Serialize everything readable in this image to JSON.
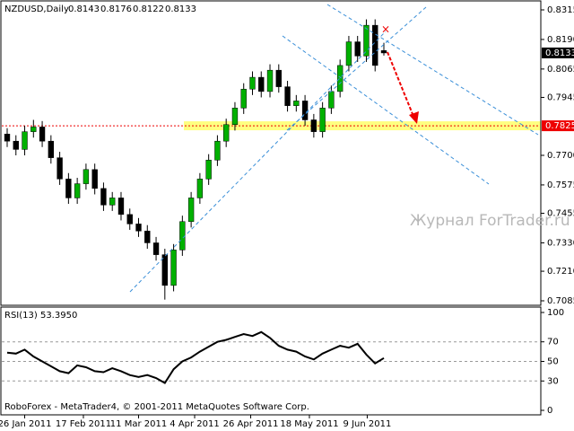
{
  "chart_data": {
    "type": "candlestick",
    "title": "NZDUSD,Daily",
    "open": [
      0.779,
      0.776,
      0.7725,
      0.78,
      0.782,
      0.776,
      0.769,
      0.76,
      0.752,
      0.758,
      0.764,
      0.756,
      0.749,
      0.752,
      0.745,
      0.741,
      0.738,
      0.733,
      0.728,
      0.715,
      0.73,
      0.742,
      0.752,
      0.76,
      0.768,
      0.776,
      0.783,
      0.79,
      0.798,
      0.803,
      0.797,
      0.806,
      0.799,
      0.791,
      0.793,
      0.785,
      0.78,
      0.79,
      0.797,
      0.808,
      0.818,
      0.812,
      0.825,
      0.8143
    ],
    "high": [
      0.7815,
      0.7785,
      0.7825,
      0.785,
      0.7845,
      0.7785,
      0.7715,
      0.7625,
      0.7605,
      0.7665,
      0.7665,
      0.7585,
      0.7545,
      0.7545,
      0.7475,
      0.7435,
      0.7405,
      0.7355,
      0.7305,
      0.7325,
      0.7445,
      0.7545,
      0.7625,
      0.7705,
      0.7785,
      0.7855,
      0.7925,
      0.8005,
      0.8055,
      0.8055,
      0.8085,
      0.8085,
      0.8015,
      0.7955,
      0.7955,
      0.7875,
      0.7925,
      0.7995,
      0.8105,
      0.8205,
      0.8205,
      0.8275,
      0.8275,
      0.8176
    ],
    "low": [
      0.7735,
      0.77,
      0.77,
      0.7775,
      0.7735,
      0.7665,
      0.7575,
      0.7495,
      0.7495,
      0.7555,
      0.7535,
      0.7465,
      0.7465,
      0.7425,
      0.7385,
      0.7355,
      0.7305,
      0.7255,
      0.709,
      0.7125,
      0.7275,
      0.7395,
      0.7495,
      0.7575,
      0.7655,
      0.7735,
      0.7805,
      0.7875,
      0.7955,
      0.7945,
      0.7945,
      0.7965,
      0.7885,
      0.7885,
      0.7825,
      0.7775,
      0.7775,
      0.7875,
      0.7945,
      0.8055,
      0.8095,
      0.8095,
      0.8055,
      0.8122
    ],
    "close": [
      0.776,
      0.7725,
      0.78,
      0.782,
      0.776,
      0.769,
      0.76,
      0.752,
      0.758,
      0.764,
      0.756,
      0.749,
      0.752,
      0.745,
      0.741,
      0.738,
      0.733,
      0.728,
      0.715,
      0.73,
      0.742,
      0.752,
      0.76,
      0.768,
      0.776,
      0.783,
      0.79,
      0.798,
      0.803,
      0.797,
      0.806,
      0.799,
      0.791,
      0.793,
      0.785,
      0.78,
      0.79,
      0.797,
      0.808,
      0.818,
      0.812,
      0.825,
      0.808,
      0.8133
    ],
    "up_color": "#00b000",
    "down_color": "#000000",
    "ylim": [
      0.7066,
      0.8353
    ],
    "yticks": [
      0.8315,
      {
        "value": 0.819,
        "label": "0.8190"
      },
      0.8065,
      0.7945,
      {
        "value": 0.77,
        "label": "0.7700"
      },
      0.7575,
      0.7455,
      {
        "value": 0.733,
        "label": "0.7330"
      },
      {
        "value": 0.721,
        "label": "0.7210"
      },
      0.7085
    ],
    "xticks": [
      {
        "value": 2,
        "label": "26 Jan 2011"
      },
      {
        "value": 8.7,
        "label": "17 Feb 2011"
      },
      {
        "value": 15,
        "label": "11 Mar 2011"
      },
      {
        "value": 21.4,
        "label": "4 Apr 2011"
      },
      {
        "value": 27.8,
        "label": "26 Apr 2011"
      },
      {
        "value": 34.5,
        "label": "18 May 2011"
      },
      {
        "value": 41.1,
        "label": "9 Jun 2011"
      }
    ],
    "level": 0.7825,
    "watermark": "Журнал ForTrader.ru",
    "footer": "RoboForex - MetaTrader4, © 2001-2011 MetaQuotes Software Corp.",
    "indicator": {
      "title": "RSI(13) 53.3950",
      "values": [
        59,
        58,
        62,
        55,
        50,
        45,
        40,
        38,
        46,
        44,
        40,
        39,
        43,
        40,
        36,
        34,
        36,
        33,
        28,
        42,
        50,
        54,
        60,
        65,
        70,
        72,
        75,
        78,
        76,
        80,
        74,
        66,
        62,
        60,
        55,
        52,
        58,
        62,
        66,
        64,
        68,
        57,
        48,
        53.395
      ],
      "ylim": [
        -4.6,
        105.5
      ],
      "yticks": [
        100,
        70,
        50,
        30,
        0
      ],
      "levels": [
        70,
        50,
        30
      ]
    }
  }
}
